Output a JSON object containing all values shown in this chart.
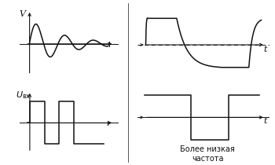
{
  "bg_color": "#ffffff",
  "line_color": "#111111",
  "label_V": "V",
  "label_t": "t",
  "label_more_low": "Более низкая\nчастота",
  "font_size_small": 7,
  "font_size_label": 8
}
